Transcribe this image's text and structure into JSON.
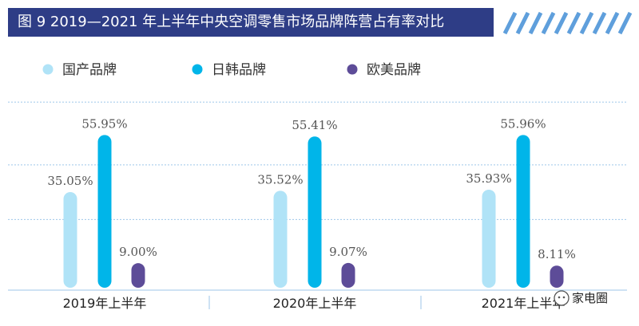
{
  "header": {
    "title": "图 9  2019—2021 年上半年中央空调零售市场品牌阵营占有率对比"
  },
  "watermark": {
    "text": "家电圈"
  },
  "colors": {
    "title_bg": "#2e3d86",
    "stripes": "#5f9fdc",
    "grid": "#9ec6ea",
    "series": [
      "#b0e3f7",
      "#00b5e9",
      "#5d4c98"
    ]
  },
  "chart_data": {
    "type": "bar",
    "title": "2019—2021 年上半年中央空调零售市场品牌阵营占有率对比",
    "categories": [
      "2019年上半年",
      "2020年上半年",
      "2021年上半年"
    ],
    "series": [
      {
        "name": "国产品牌",
        "values": [
          35.05,
          35.52,
          35.93
        ],
        "labels": [
          "35.05%",
          "35.52%",
          "35.93%"
        ]
      },
      {
        "name": "日韩品牌",
        "values": [
          55.95,
          55.41,
          55.96
        ],
        "labels": [
          "55.95%",
          "55.41%",
          "55.96%"
        ]
      },
      {
        "name": "欧美品牌",
        "values": [
          9.0,
          9.07,
          8.11
        ],
        "labels": [
          "9.00%",
          "9.07%",
          "8.11%"
        ]
      }
    ],
    "ylim": [
      0,
      65
    ],
    "unit": "%",
    "grid": true,
    "legend": "top-left",
    "xlabel": "",
    "ylabel": ""
  }
}
